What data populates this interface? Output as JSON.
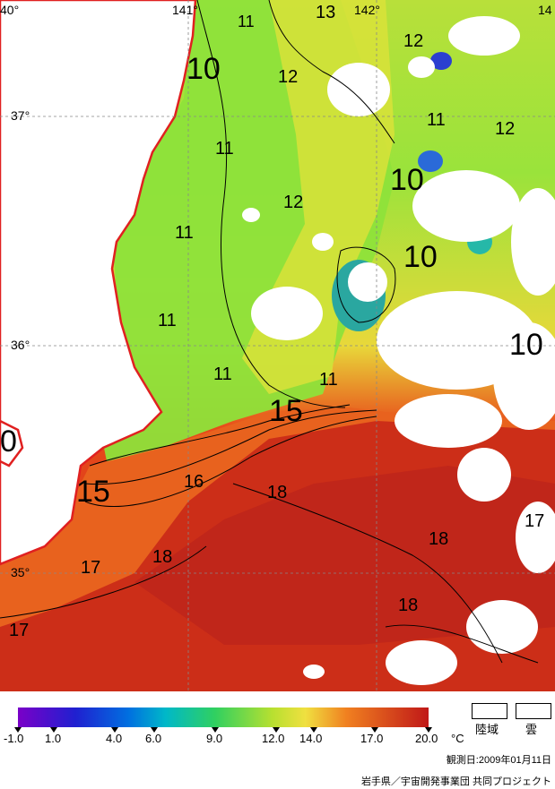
{
  "map": {
    "lon_labels": [
      "40°",
      "141°",
      "142°",
      "14"
    ],
    "lat_labels": [
      "37°",
      "36°",
      "35°"
    ],
    "contour_labels": [
      "11",
      "13",
      "12",
      "10",
      "12",
      "12",
      "11",
      "11",
      "12",
      "10",
      "11",
      "11",
      "10",
      "11",
      "10",
      "11",
      "15",
      "0",
      "16",
      "18",
      "15",
      "17",
      "18",
      "18",
      "17",
      "18",
      "17"
    ]
  },
  "legend": {
    "ticks": [
      "-1.0",
      "1.0",
      "4.0",
      "6.0",
      "9.0",
      "12.0",
      "14.0",
      "17.0",
      "20.0",
      "°C"
    ],
    "land_label": "陸域",
    "cloud_label": "雲",
    "date": "観測日:2009年01月11日",
    "credit": "岩手県／宇宙開発事業団 共同プロジェクト"
  },
  "colors": {
    "land": "#ffffff",
    "coast": "#e02020",
    "cold": "#6a0dad",
    "mid": "#7fe03a",
    "warm": "#c8281a"
  }
}
